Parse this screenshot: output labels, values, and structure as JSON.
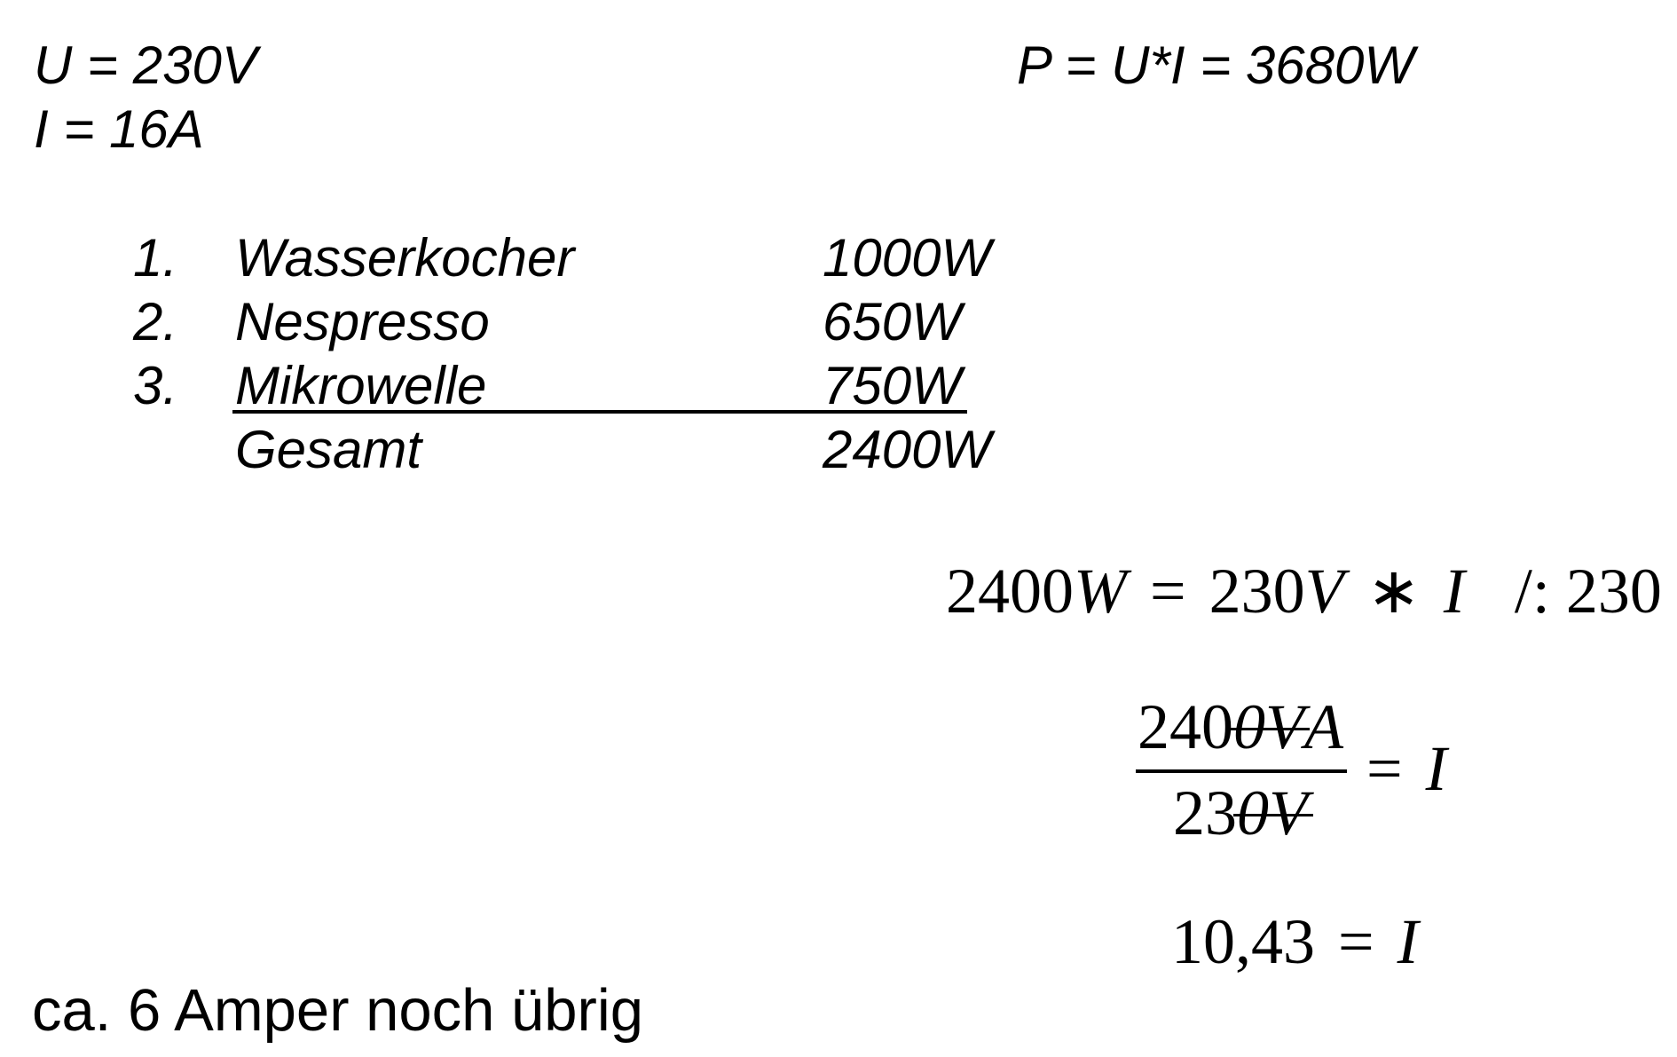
{
  "given": {
    "voltage": "U = 230V",
    "current": "I = 16A"
  },
  "power_formula": "P = U*I = 3680W",
  "appliances": [
    {
      "number": "1.",
      "name": "Wasserkocher",
      "power": "1000W"
    },
    {
      "number": "2.",
      "name": "Nespresso",
      "power": "650W"
    },
    {
      "number": "3.",
      "name": "Mikrowelle",
      "power": "750W"
    }
  ],
  "total": {
    "label": "Gesamt",
    "power": "2400W"
  },
  "equation1": {
    "lhs_number": "2400",
    "lhs_unit": "W",
    "equals": "=",
    "rhs_number": "230",
    "rhs_unit": "V",
    "times": "∗",
    "variable": "I",
    "operation": "/: 230"
  },
  "equation2": {
    "numerator_number": "240",
    "numerator_struck": "0V",
    "numerator_unit": "A",
    "denominator_number": "23",
    "denominator_struck": "0V",
    "equals": "=",
    "variable": "I"
  },
  "equation3": {
    "value": "10,43",
    "equals": "=",
    "variable": "I"
  },
  "conclusion": "ca. 6 Amper noch übrig"
}
